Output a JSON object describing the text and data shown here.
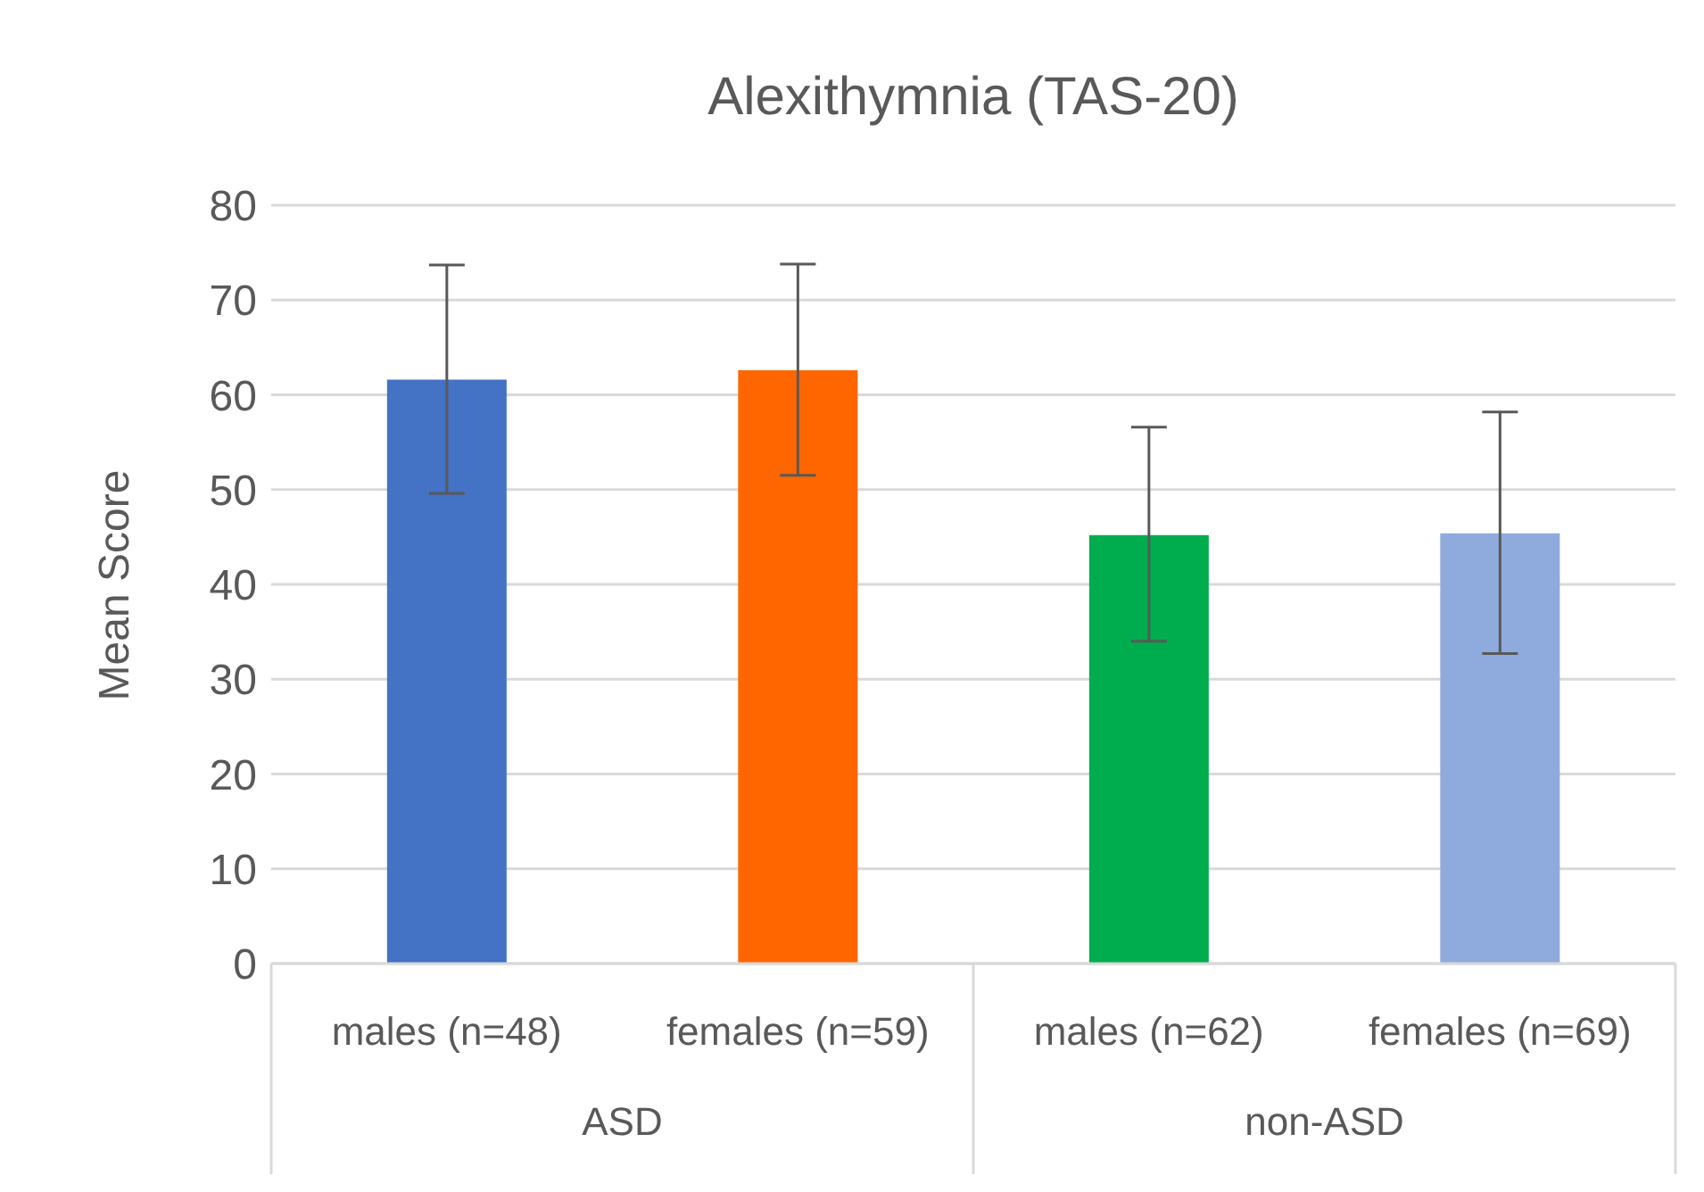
{
  "chart_data": {
    "type": "bar",
    "title": "Alexithymnia (TAS-20)",
    "ylabel": "Mean Score",
    "categories": [
      "males (n=48)",
      "females (n=59)",
      "males (n=62)",
      "females (n=69)"
    ],
    "values": [
      61.6,
      62.6,
      45.2,
      45.4
    ],
    "colors": [
      "#4472c4",
      "#ff6600",
      "#00ad4e",
      "#8faadc"
    ],
    "errors": [
      [
        49.6,
        73.7
      ],
      [
        51.5,
        73.8
      ],
      [
        34.0,
        56.6
      ],
      [
        32.7,
        58.2
      ]
    ],
    "annotations": [
      "ASD",
      "non-ASD"
    ],
    "ylim": [
      0,
      80
    ],
    "yticks": [
      0,
      10,
      20,
      30,
      40,
      50,
      60,
      70,
      80
    ],
    "grid": "y",
    "legend": false
  }
}
